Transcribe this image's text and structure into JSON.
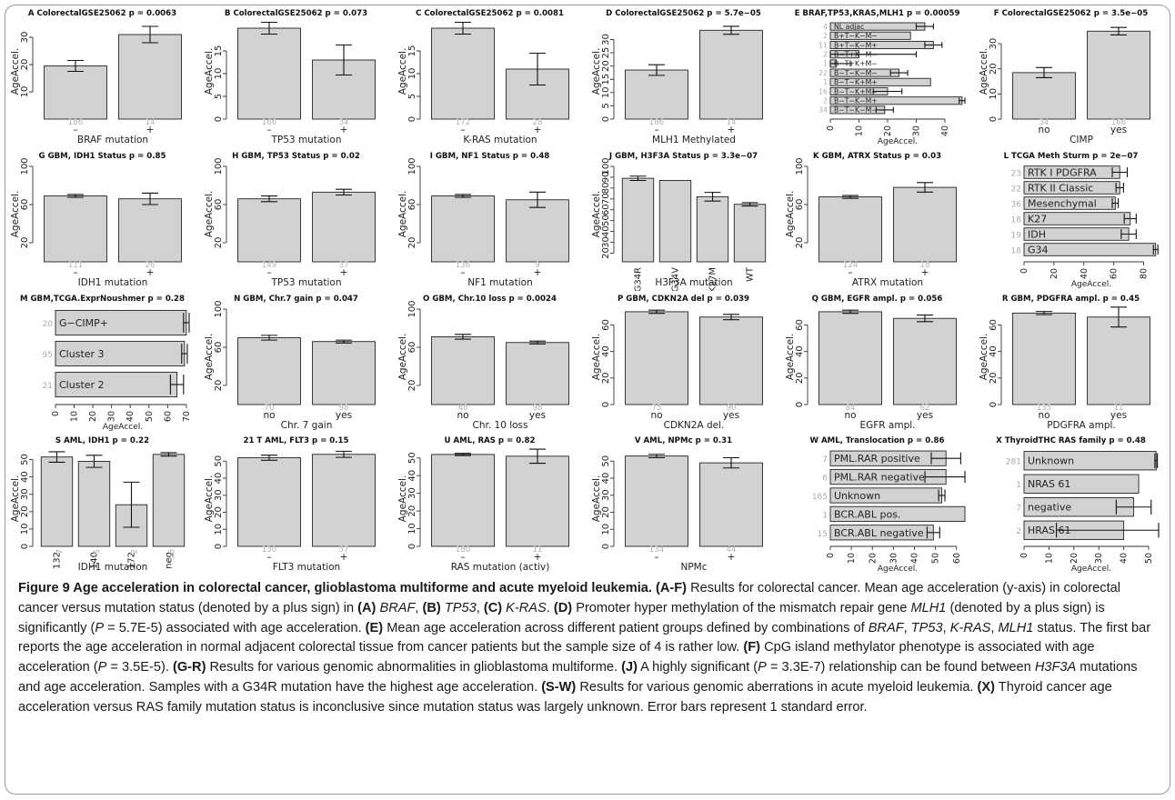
{
  "panels": [
    {
      "id": "A",
      "title": "A ColorectalGSE25062 p = 0.0063",
      "type": "vbar",
      "xlabel": "BRAF mutation",
      "ylabel": "AgeAccel.",
      "yticks": [
        10,
        20,
        30
      ],
      "ylim": [
        0,
        35
      ],
      "bars": [
        {
          "value": 19.5,
          "err": 2,
          "n": "186"
        },
        {
          "value": 31,
          "err": 3,
          "n": "14"
        }
      ],
      "cat_labels": [
        "–",
        "+"
      ]
    },
    {
      "id": "B",
      "title": "B ColorectalGSE25062 p = 0.073",
      "type": "vbar",
      "xlabel": "TP53 mutation",
      "ylabel": "AgeAccel.",
      "yticks": [
        0,
        5,
        10,
        15
      ],
      "ylim": [
        0,
        21
      ],
      "bars": [
        {
          "value": 20,
          "err": 1.3,
          "n": "166"
        },
        {
          "value": 13,
          "err": 3.3,
          "n": "34"
        }
      ],
      "cat_labels": [
        "–",
        "+"
      ]
    },
    {
      "id": "C",
      "title": "C ColorectalGSE25062 p = 0.0081",
      "type": "vbar",
      "xlabel": "K-RAS mutation",
      "ylabel": "AgeAccel.",
      "yticks": [
        0,
        5,
        10,
        15
      ],
      "ylim": [
        0,
        21
      ],
      "bars": [
        {
          "value": 20,
          "err": 1.3,
          "n": "172"
        },
        {
          "value": 11,
          "err": 3.5,
          "n": "28"
        }
      ],
      "cat_labels": [
        "–",
        "+"
      ]
    },
    {
      "id": "D",
      "title": "D ColorectalGSE25062 p = 5.7e−05",
      "type": "vbar",
      "xlabel": "MLH1 Methylated",
      "ylabel": "AgeAccel.",
      "yticks": [
        0,
        5,
        10,
        15,
        20,
        25,
        30
      ],
      "ylim": [
        0,
        36
      ],
      "bars": [
        {
          "value": 18.5,
          "err": 2,
          "n": "186"
        },
        {
          "value": 33.5,
          "err": 1.5,
          "n": "14"
        }
      ],
      "cat_labels": [
        "–",
        "+"
      ]
    },
    {
      "id": "E",
      "title": "E BRAF,TP53,KRAS,MLH1 p = 0.00059",
      "type": "hbar",
      "xlabel": "AgeAccel.",
      "xticks": [
        0,
        10,
        20,
        30,
        40
      ],
      "xlim": [
        0,
        47
      ],
      "bars": [
        {
          "label": "NL adjac",
          "n": "4",
          "value": 33,
          "err": 3
        },
        {
          "label": "B+T−K−M−",
          "n": "2",
          "value": 28,
          "err": 0
        },
        {
          "label": "B+T−K−M+",
          "n": "11",
          "value": 36,
          "err": 3
        },
        {
          "label": "B−T+K−M−",
          "n": "2",
          "value": 10,
          "err": 20
        },
        {
          "label": "B−T+K+M−",
          "n": "1",
          "value": 2,
          "err": 5
        },
        {
          "label": "B−T−K−M−",
          "n": "22",
          "value": 24,
          "err": 3
        },
        {
          "label": "B−T−K+M+",
          "n": "1",
          "value": 35,
          "err": 0
        },
        {
          "label": "B−T−K+M−",
          "n": "16",
          "value": 20,
          "err": 5
        },
        {
          "label": "B−T−K−M+",
          "n": "2",
          "value": 46,
          "err": 1
        },
        {
          "label": "B−T−K−M−",
          "n": "34",
          "value": 19,
          "err": 3
        }
      ]
    },
    {
      "id": "F",
      "title": "F ColorectalGSE25062 p = 3.5e−05",
      "type": "vbar",
      "xlabel": "CIMP",
      "ylabel": "AgeAccel.",
      "yticks": [
        0,
        10,
        20,
        30
      ],
      "ylim": [
        0,
        38
      ],
      "bars": [
        {
          "value": 18.5,
          "err": 2,
          "n": "34"
        },
        {
          "value": 35,
          "err": 1.5,
          "n": "166"
        }
      ],
      "cat_labels": [
        "no",
        "yes"
      ]
    },
    {
      "id": "G",
      "title": "G GBM, IDH1 Status p = 0.85",
      "type": "vbar",
      "xlabel": "IDH1 mutation",
      "ylabel": "AgeAccel.",
      "yticks": [
        20,
        60,
        100
      ],
      "ylim": [
        0,
        100
      ],
      "bars": [
        {
          "value": 69,
          "err": 1.5,
          "n": "111"
        },
        {
          "value": 66,
          "err": 6,
          "n": "26"
        }
      ],
      "cat_labels": [
        "–",
        "+"
      ]
    },
    {
      "id": "H",
      "title": "H GBM, TP53 Status p = 0.02",
      "type": "vbar",
      "xlabel": "TP53 mutation",
      "ylabel": "AgeAccel.",
      "yticks": [
        20,
        60,
        100
      ],
      "ylim": [
        0,
        100
      ],
      "bars": [
        {
          "value": 66,
          "err": 3,
          "n": "149"
        },
        {
          "value": 73,
          "err": 3,
          "n": "37"
        }
      ],
      "cat_labels": [
        "–",
        "+"
      ]
    },
    {
      "id": "I",
      "title": "I GBM, NF1 Status p = 0.48",
      "type": "vbar",
      "xlabel": "NF1 mutation",
      "ylabel": "AgeAccel.",
      "yticks": [
        20,
        60,
        100
      ],
      "ylim": [
        0,
        100
      ],
      "bars": [
        {
          "value": 69,
          "err": 1.5,
          "n": "136"
        },
        {
          "value": 65,
          "err": 8,
          "n": "9"
        }
      ],
      "cat_labels": [
        "–",
        "+"
      ]
    },
    {
      "id": "J",
      "title": "J GBM, H3F3A Status p = 3.3e−07",
      "type": "vbar",
      "xlabel": "H3F3A  mutation",
      "ylabel": "AgeAccel.",
      "yticks": [
        20,
        30,
        40,
        50,
        60,
        70,
        80,
        90,
        100
      ],
      "ylim": [
        12,
        100
      ],
      "bars": [
        {
          "value": 89,
          "err": 2,
          "n": ""
        },
        {
          "value": 87,
          "err": 0,
          "n": ""
        },
        {
          "value": 72,
          "err": 4,
          "n": ""
        },
        {
          "value": 65,
          "err": 1.5,
          "n": ""
        }
      ],
      "cat_labels": [
        "G34R",
        "G34V",
        "K27M",
        "WT"
      ]
    },
    {
      "id": "K",
      "title": "K GBM, ATRX Status p = 0.03",
      "type": "vbar",
      "xlabel": "ATRX mutation",
      "ylabel": "AgeAccel.",
      "yticks": [
        20,
        60,
        100
      ],
      "ylim": [
        0,
        100
      ],
      "bars": [
        {
          "value": 68,
          "err": 1.5,
          "n": "124"
        },
        {
          "value": 78,
          "err": 5,
          "n": "18"
        }
      ],
      "cat_labels": [
        "–",
        "+"
      ]
    },
    {
      "id": "L",
      "title": "L TCGA Meth Sturm p = 2e−07",
      "type": "hbar",
      "xlabel": "AgeAccel.",
      "xticks": [
        0,
        20,
        40,
        60,
        80
      ],
      "xlim": [
        0,
        90
      ],
      "bars": [
        {
          "label": "RTK I PDGFRA",
          "n": "23",
          "value": 64,
          "err": 5
        },
        {
          "label": "RTK II Classic",
          "n": "22",
          "value": 64,
          "err": 2.5
        },
        {
          "label": "Mesenchymal",
          "n": "36",
          "value": 61,
          "err": 2
        },
        {
          "label": "K27",
          "n": "18",
          "value": 71,
          "err": 4
        },
        {
          "label": "IDH",
          "n": "19",
          "value": 70,
          "err": 5
        },
        {
          "label": "G34",
          "n": "18",
          "value": 88,
          "err": 1.5
        }
      ]
    },
    {
      "id": "M",
      "title": "M GBM,TCGA.ExprNoushmer p = 0.28",
      "type": "hbar",
      "xlabel": "AgeAccel.",
      "xticks": [
        0,
        10,
        20,
        30,
        40,
        50,
        60,
        70
      ],
      "xlim": [
        0,
        72
      ],
      "bars": [
        {
          "label": "G−CIMP+",
          "n": "20",
          "value": 70,
          "err": 1.5
        },
        {
          "label": "Cluster 3",
          "n": "95",
          "value": 69,
          "err": 1.5
        },
        {
          "label": "Cluster 2",
          "n": "21",
          "value": 65,
          "err": 3.5
        }
      ]
    },
    {
      "id": "N",
      "title": "N GBM, Chr.7 gain p = 0.047",
      "type": "vbar",
      "xlabel": "Chr. 7 gain",
      "ylabel": "AgeAccel.",
      "yticks": [
        20,
        60,
        100
      ],
      "ylim": [
        0,
        100
      ],
      "bars": [
        {
          "value": 70,
          "err": 2.5,
          "n": "70"
        },
        {
          "value": 66,
          "err": 1.5,
          "n": "98"
        }
      ],
      "cat_labels": [
        "no",
        "yes"
      ]
    },
    {
      "id": "O",
      "title": "O GBM, Chr.10 loss p = 0.0024",
      "type": "vbar",
      "xlabel": "Chr. 10 loss",
      "ylabel": "AgeAccel.",
      "yticks": [
        20,
        60,
        100
      ],
      "ylim": [
        0,
        100
      ],
      "bars": [
        {
          "value": 71,
          "err": 2.5,
          "n": "48"
        },
        {
          "value": 65,
          "err": 1.5,
          "n": "98"
        }
      ],
      "cat_labels": [
        "no",
        "yes"
      ]
    },
    {
      "id": "P",
      "title": "P GBM, CDKN2A del p = 0.039",
      "type": "vbar",
      "xlabel": "CDKN2A del.",
      "ylabel": "AgeAccel.",
      "yticks": [
        0,
        20,
        40,
        60
      ],
      "ylim": [
        0,
        72
      ],
      "bars": [
        {
          "value": 70,
          "err": 1.2,
          "n": "75"
        },
        {
          "value": 66,
          "err": 2,
          "n": "90"
        }
      ],
      "cat_labels": [
        "no",
        "yes"
      ]
    },
    {
      "id": "Q",
      "title": "Q GBM, EGFR ampl. p = 0.056",
      "type": "vbar",
      "xlabel": "EGFR ampl.",
      "ylabel": "AgeAccel.",
      "yticks": [
        0,
        20,
        40,
        60
      ],
      "ylim": [
        0,
        72
      ],
      "bars": [
        {
          "value": 70,
          "err": 1.2,
          "n": "84"
        },
        {
          "value": 65,
          "err": 2.5,
          "n": "62"
        }
      ],
      "cat_labels": [
        "no",
        "yes"
      ]
    },
    {
      "id": "R",
      "title": "R GBM, PDGFRA ampl. p = 0.45",
      "type": "vbar",
      "xlabel": "PDGFRA ampl.",
      "ylabel": "AgeAccel.",
      "yticks": [
        0,
        20,
        40,
        60
      ],
      "ylim": [
        0,
        72
      ],
      "bars": [
        {
          "value": 69,
          "err": 1.2,
          "n": "135"
        },
        {
          "value": 66,
          "err": 7.5,
          "n": "11"
        }
      ],
      "cat_labels": [
        "no",
        "yes"
      ]
    },
    {
      "id": "S",
      "title": "S AML, IDH1 p = 0.22",
      "type": "vbar",
      "xlabel": "IDH1 mutation",
      "ylabel": "AgeAccel.",
      "yticks": [
        0,
        10,
        20,
        30,
        40,
        50
      ],
      "ylim": [
        0,
        55
      ],
      "bars": [
        {
          "value": 51.5,
          "err": 3,
          "n": ""
        },
        {
          "value": 49,
          "err": 3.5,
          "n": ""
        },
        {
          "value": 24,
          "err": 13,
          "n": ""
        },
        {
          "value": 53,
          "err": 1,
          "n": ""
        }
      ],
      "cat_labels": [
        "132",
        "140",
        "172",
        "neg"
      ],
      "cat_ns": [
        "7",
        "5",
        "2",
        "56"
      ]
    },
    {
      "id": "T",
      "title": "21 T AML, FLT3 p = 0.15",
      "type": "vbar",
      "xlabel": "FLT3 mutation",
      "ylabel": "AgeAccel.",
      "yticks": [
        0,
        10,
        20,
        30,
        40,
        50
      ],
      "ylim": [
        0,
        56
      ],
      "bars": [
        {
          "value": 52,
          "err": 1.5,
          "n": "130"
        },
        {
          "value": 54,
          "err": 1.8,
          "n": "57"
        }
      ],
      "cat_labels": [
        "–",
        "+"
      ]
    },
    {
      "id": "U",
      "title": "U AML, RAS p = 0.82",
      "type": "vbar",
      "xlabel": "RAS mutation (activ)",
      "ylabel": "AgeAccel.",
      "yticks": [
        0,
        10,
        20,
        30,
        40,
        50
      ],
      "ylim": [
        0,
        54
      ],
      "bars": [
        {
          "value": 52,
          "err": 0.6,
          "n": "180"
        },
        {
          "value": 51,
          "err": 4,
          "n": "11"
        }
      ],
      "cat_labels": [
        "–",
        "+"
      ]
    },
    {
      "id": "V",
      "title": "V AML, NPMc p = 0.31",
      "type": "vbar",
      "xlabel": "NPMc",
      "ylabel": "AgeAccel.",
      "yticks": [
        0,
        10,
        20,
        30,
        40,
        50
      ],
      "ylim": [
        0,
        56
      ],
      "bars": [
        {
          "value": 53,
          "err": 1,
          "n": "134"
        },
        {
          "value": 49,
          "err": 3,
          "n": "44"
        }
      ],
      "cat_labels": [
        "–",
        "+"
      ]
    },
    {
      "id": "W",
      "title": "W AML, Translocation p = 0.86",
      "type": "hbar",
      "xlabel": "AgeAccel.",
      "xticks": [
        0,
        10,
        20,
        30,
        40,
        50,
        60
      ],
      "xlim": [
        0,
        64
      ],
      "bars": [
        {
          "label": "PML.RAR positive",
          "n": "7",
          "value": 55,
          "err": 7
        },
        {
          "label": "PML.RAR negative",
          "n": "6",
          "value": 55,
          "err": 10
        },
        {
          "label": "Unknown",
          "n": "165",
          "value": 53,
          "err": 1.5
        },
        {
          "label": "BCR.ABL pos.",
          "n": "1",
          "value": 64,
          "err": 0
        },
        {
          "label": "BCR.ABL negative",
          "n": "15",
          "value": 49,
          "err": 3
        }
      ]
    },
    {
      "id": "X",
      "title": "X ThyroidTHC RAS family p = 0.48",
      "type": "hbar",
      "xlabel": "AgeAccel.",
      "xticks": [
        0,
        10,
        20,
        30,
        40,
        50
      ],
      "xlim": [
        0,
        54
      ],
      "bars": [
        {
          "label": "Unknown",
          "n": "281",
          "value": 53,
          "err": 0.5
        },
        {
          "label": "NRAS 61",
          "n": "1",
          "value": 46,
          "err": 0
        },
        {
          "label": "negative",
          "n": "7",
          "value": 44,
          "err": 7
        },
        {
          "label": "HRAS 61",
          "n": "2",
          "value": 40,
          "err": 27
        }
      ]
    }
  ],
  "caption": {
    "segments": [
      {
        "b": true,
        "t": "Figure 9 Age acceleration in colorectal cancer, glioblastoma multiforme and acute myeloid leukemia."
      },
      {
        "t": " "
      },
      {
        "b": true,
        "t": "(A-F)"
      },
      {
        "t": " Results for colorectal cancer. Mean age acceleration (y-axis) in colorectal cancer versus mutation status (denoted by a plus sign) in "
      },
      {
        "b": true,
        "t": "(A)"
      },
      {
        "t": " "
      },
      {
        "i": true,
        "t": "BRAF"
      },
      {
        "t": ", "
      },
      {
        "b": true,
        "t": "(B)"
      },
      {
        "t": " "
      },
      {
        "i": true,
        "t": "TP53"
      },
      {
        "t": ", "
      },
      {
        "b": true,
        "t": "(C)"
      },
      {
        "t": " "
      },
      {
        "i": true,
        "t": "K-RAS"
      },
      {
        "t": ". "
      },
      {
        "b": true,
        "t": "(D)"
      },
      {
        "t": " Promoter hyper methylation of the mismatch repair gene "
      },
      {
        "i": true,
        "t": "MLH1"
      },
      {
        "t": " (denoted by a plus sign) is significantly ("
      },
      {
        "i": true,
        "t": "P"
      },
      {
        "t": " = 5.7E-5) associated with age acceleration. "
      },
      {
        "b": true,
        "t": "(E)"
      },
      {
        "t": " Mean age acceleration across different patient groups defined by combinations of "
      },
      {
        "i": true,
        "t": "BRAF"
      },
      {
        "t": ", "
      },
      {
        "i": true,
        "t": "TP53"
      },
      {
        "t": ", "
      },
      {
        "i": true,
        "t": "K-RAS"
      },
      {
        "t": ", "
      },
      {
        "i": true,
        "t": "MLH1"
      },
      {
        "t": " status. The first bar reports the age acceleration in normal adjacent colorectal tissue from cancer patients but the sample size of 4 is rather low. "
      },
      {
        "b": true,
        "t": "(F)"
      },
      {
        "t": " CpG island methylator phenotype is associated with age acceleration ("
      },
      {
        "i": true,
        "t": "P"
      },
      {
        "t": " = 3.5E-5). "
      },
      {
        "b": true,
        "t": "(G-R)"
      },
      {
        "t": " Results for various genomic abnormalities in glioblastoma multiforme. "
      },
      {
        "b": true,
        "t": "(J)"
      },
      {
        "t": " A highly significant ("
      },
      {
        "i": true,
        "t": "P"
      },
      {
        "t": " = 3.3E-7) relationship can be found between "
      },
      {
        "i": true,
        "t": "H3F3A"
      },
      {
        "t": " mutations and age acceleration. Samples with a G34R mutation have the highest age acceleration. "
      },
      {
        "b": true,
        "t": "(S-W)"
      },
      {
        "t": " Results for various genomic aberrations in acute myeloid leukemia. "
      },
      {
        "b": true,
        "t": "(X)"
      },
      {
        "t": " Thyroid cancer age acceleration versus RAS family mutation status is inconclusive since mutation status was largely unknown. Error bars represent 1 standard error."
      }
    ]
  }
}
